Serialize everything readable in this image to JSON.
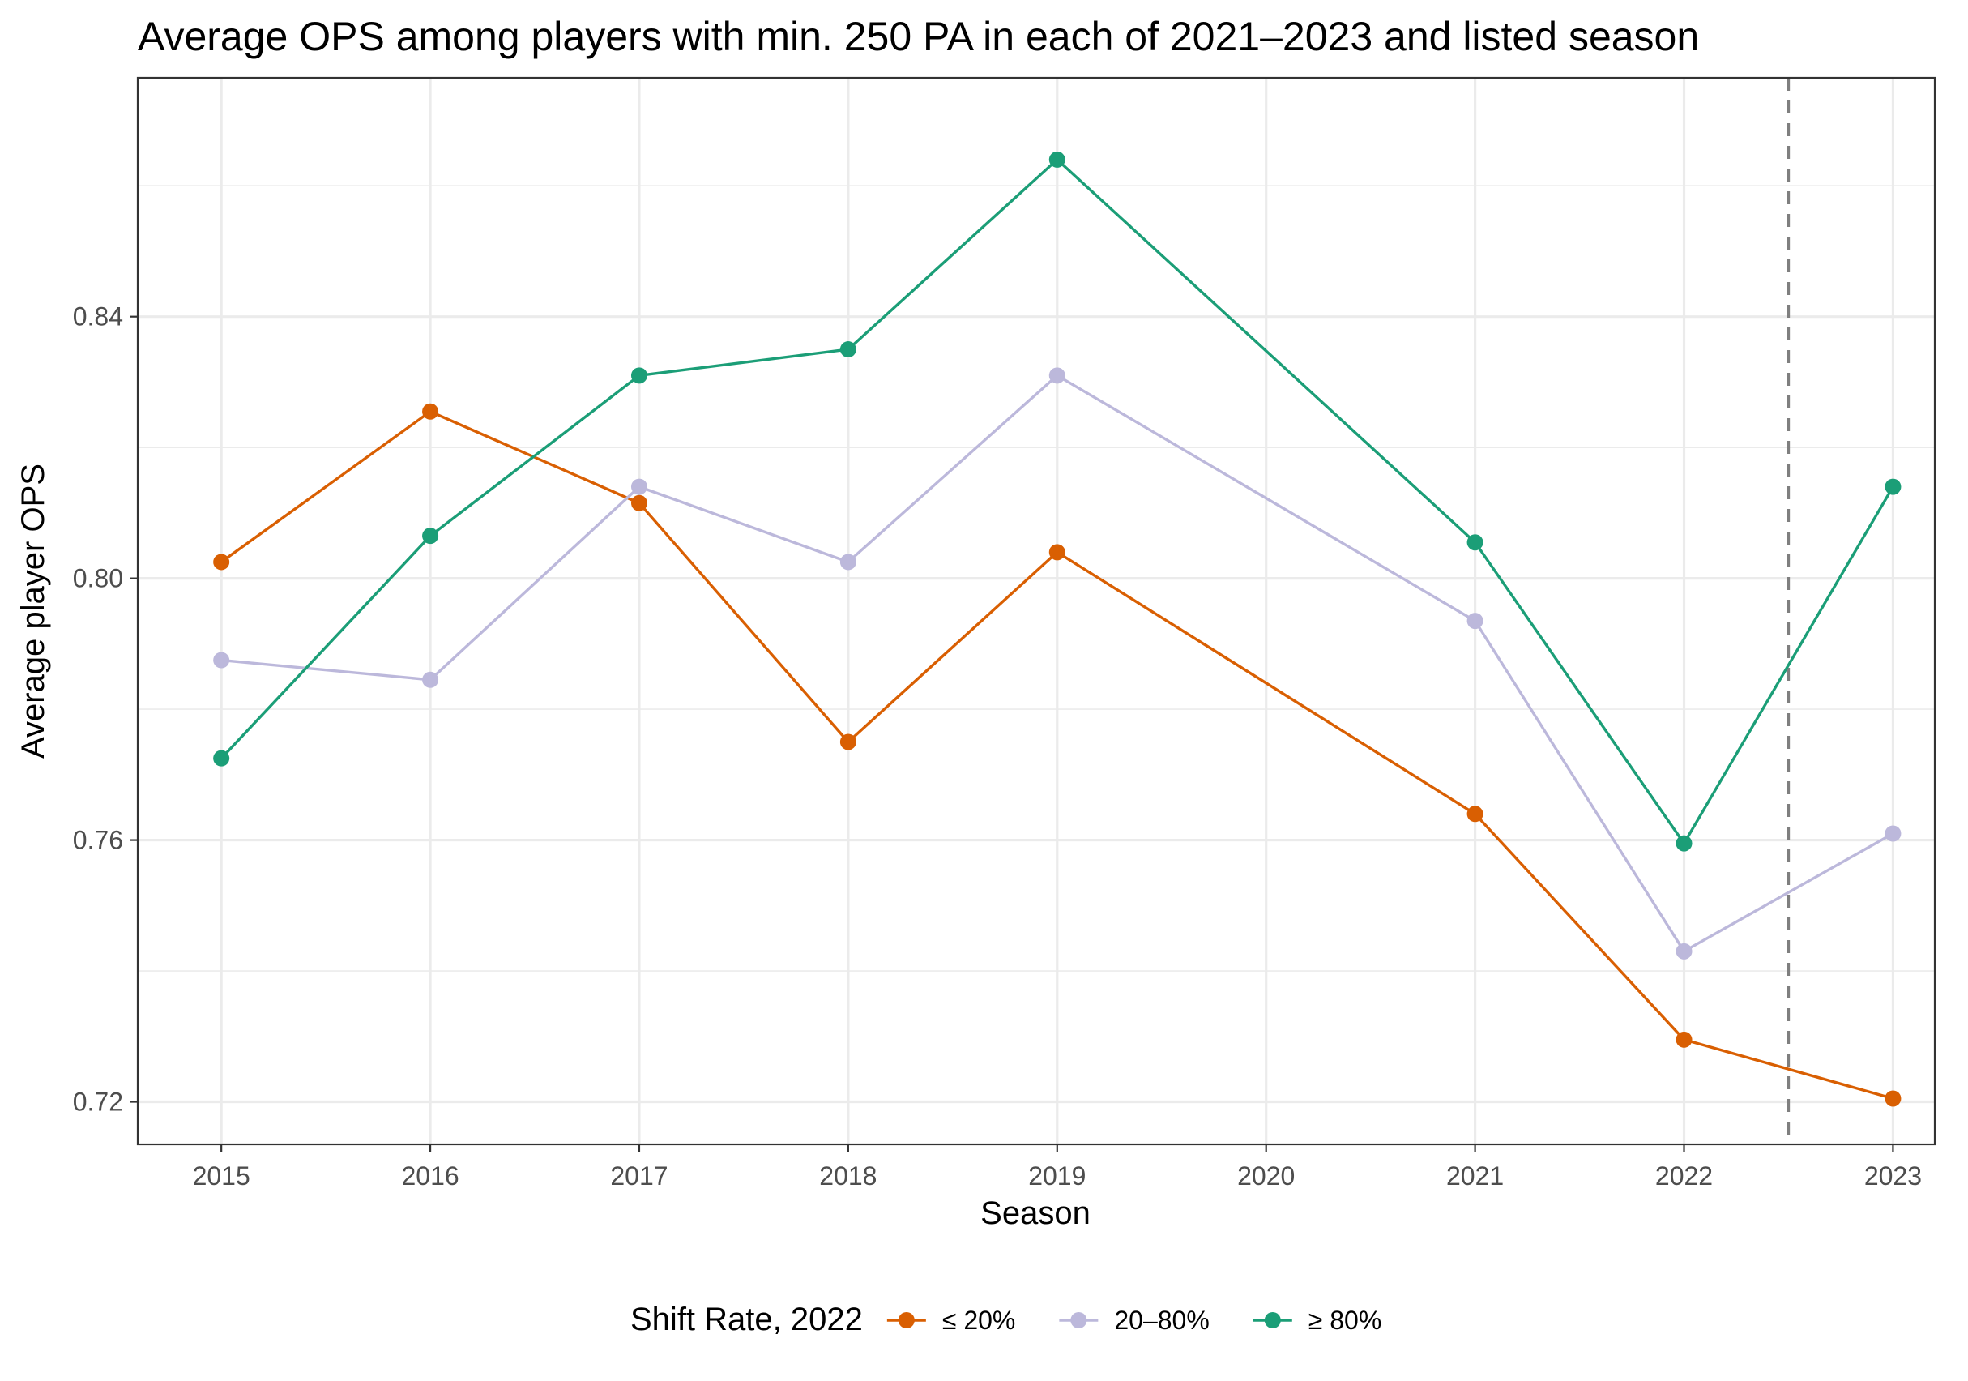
{
  "chart_data": {
    "type": "line",
    "title": "Average OPS among players with min. 250 PA in each of 2021–2023 and listed season",
    "xlabel": "Season",
    "ylabel": "Average player OPS",
    "x": [
      2015,
      2016,
      2017,
      2018,
      2019,
      2020,
      2021,
      2022,
      2023
    ],
    "x_tick_labels": [
      "2015",
      "2016",
      "2017",
      "2018",
      "2019",
      "2020",
      "2021",
      "2022",
      "2023"
    ],
    "y_ticks": [
      0.72,
      0.76,
      0.8,
      0.84
    ],
    "y_tick_labels": [
      "0.72",
      "0.76",
      "0.80",
      "0.84"
    ],
    "ylim": [
      0.7135,
      0.8765
    ],
    "xlim": [
      2014.6,
      2023.2
    ],
    "grid": true,
    "reference_line": {
      "x": 2022.5,
      "style": "dashed",
      "color": "#7f7f7f"
    },
    "legend": {
      "title": "Shift Rate, 2022",
      "position": "bottom"
    },
    "series": [
      {
        "name": "≤ 20%",
        "color": "#d95f02",
        "opacity": 1,
        "points": [
          {
            "x": 2015,
            "y": 0.8025
          },
          {
            "x": 2016,
            "y": 0.8255
          },
          {
            "x": 2017,
            "y": 0.8115
          },
          {
            "x": 2018,
            "y": 0.775
          },
          {
            "x": 2019,
            "y": 0.804
          },
          {
            "x": 2021,
            "y": 0.764
          },
          {
            "x": 2022,
            "y": 0.7295
          },
          {
            "x": 2023,
            "y": 0.7205
          }
        ]
      },
      {
        "name": "20–80%",
        "color": "#bcb8db",
        "opacity": 1,
        "points": [
          {
            "x": 2015,
            "y": 0.7875
          },
          {
            "x": 2016,
            "y": 0.7845
          },
          {
            "x": 2017,
            "y": 0.814
          },
          {
            "x": 2018,
            "y": 0.8025
          },
          {
            "x": 2019,
            "y": 0.831
          },
          {
            "x": 2021,
            "y": 0.7935
          },
          {
            "x": 2022,
            "y": 0.743
          },
          {
            "x": 2023,
            "y": 0.761
          }
        ]
      },
      {
        "name": "≥ 80%",
        "color": "#1b9e77",
        "opacity": 1,
        "points": [
          {
            "x": 2015,
            "y": 0.7725
          },
          {
            "x": 2016,
            "y": 0.8065
          },
          {
            "x": 2017,
            "y": 0.831
          },
          {
            "x": 2018,
            "y": 0.835
          },
          {
            "x": 2019,
            "y": 0.864
          },
          {
            "x": 2021,
            "y": 0.8055
          },
          {
            "x": 2022,
            "y": 0.7595
          },
          {
            "x": 2023,
            "y": 0.814
          }
        ]
      }
    ]
  }
}
